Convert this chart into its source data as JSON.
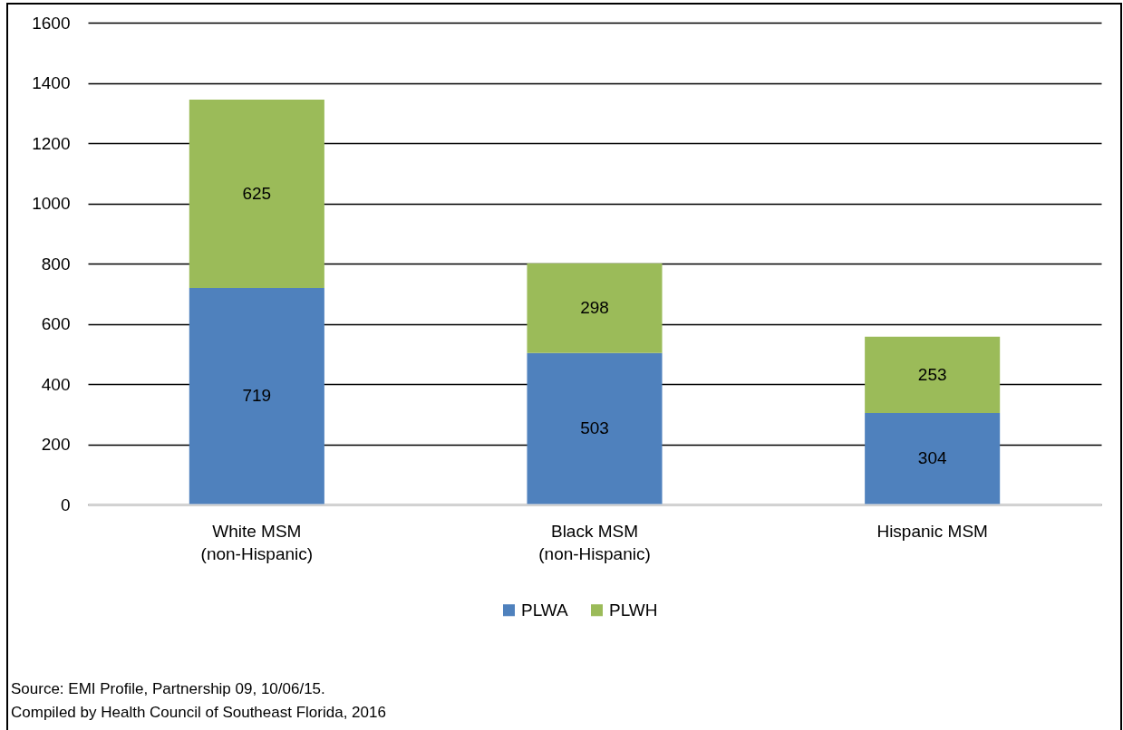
{
  "chart_data": {
    "type": "bar",
    "categories": [
      "White MSM\n(non-Hispanic)",
      "Black MSM\n(non-Hispanic)",
      "Hispanic MSM"
    ],
    "stacked": true,
    "series": [
      {
        "name": "PLWA",
        "color": "#4f81bd",
        "values": [
          719,
          503,
          304
        ]
      },
      {
        "name": "PLWH",
        "color": "#9bbb59",
        "values": [
          625,
          298,
          253
        ]
      }
    ],
    "ylim": [
      0,
      1600
    ],
    "yticks": [
      0,
      200,
      400,
      600,
      800,
      1000,
      1200,
      1400,
      1600
    ],
    "grid": "y",
    "legend": "bottom",
    "data_labels": true,
    "annotations": [
      "Source:  EMI Profile, Partnership 09, 10/06/15.",
      "Compiled by Health Council of Southeast Florida, 2016"
    ]
  }
}
